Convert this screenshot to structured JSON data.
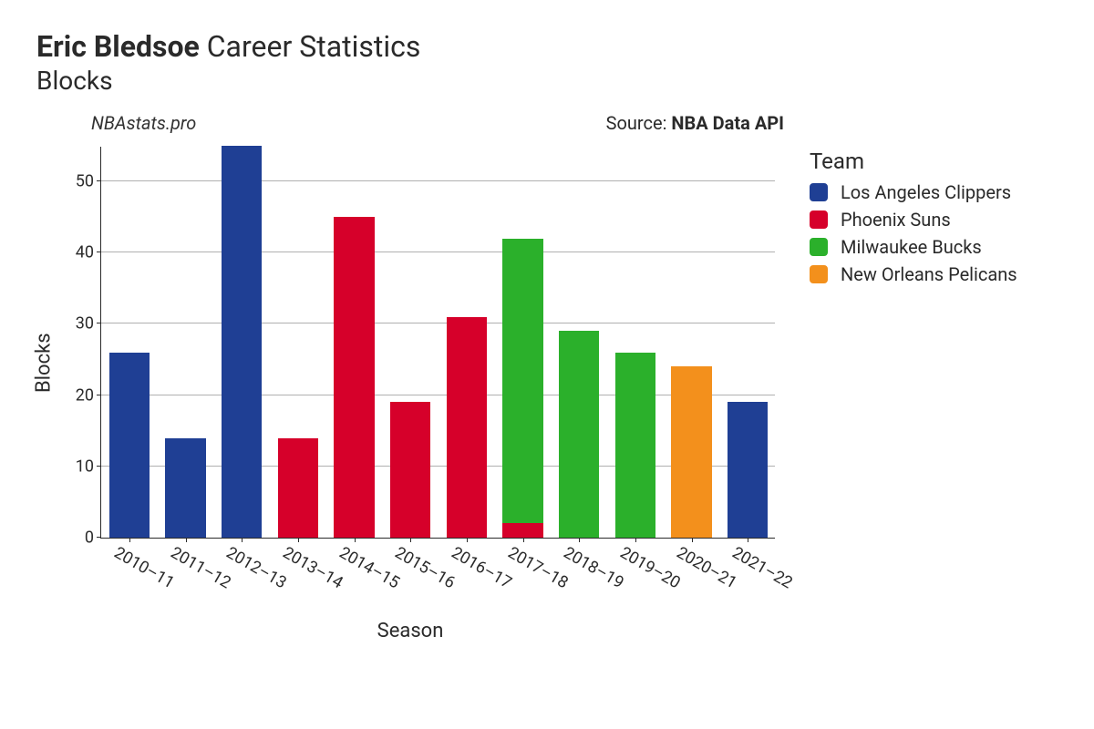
{
  "title": {
    "player_name": "Eric Bledsoe",
    "suffix": " Career Statistics",
    "subtitle": "Blocks"
  },
  "meta": {
    "watermark": "NBAstats.pro",
    "source_label": "Source: ",
    "source_name": "NBA Data API"
  },
  "chart": {
    "type": "bar",
    "xlabel": "Season",
    "ylabel": "Blocks",
    "ylim": [
      0,
      55
    ],
    "ytick_step": 10,
    "grid_color": "#b0b0b0",
    "background_color": "#ffffff",
    "bar_width": 0.72,
    "label_fontsize": 22,
    "tick_fontsize": 18,
    "seasons": [
      "2010–11",
      "2011–12",
      "2012–13",
      "2013–14",
      "2014–15",
      "2015–16",
      "2016–17",
      "2017–18",
      "2018–19",
      "2019–20",
      "2020–21",
      "2021–22"
    ],
    "segments": [
      [
        {
          "team": "Los Angeles Clippers",
          "value": 26
        }
      ],
      [
        {
          "team": "Los Angeles Clippers",
          "value": 14
        }
      ],
      [
        {
          "team": "Los Angeles Clippers",
          "value": 55
        }
      ],
      [
        {
          "team": "Phoenix Suns",
          "value": 14
        }
      ],
      [
        {
          "team": "Phoenix Suns",
          "value": 45
        }
      ],
      [
        {
          "team": "Phoenix Suns",
          "value": 19
        }
      ],
      [
        {
          "team": "Phoenix Suns",
          "value": 31
        }
      ],
      [
        {
          "team": "Phoenix Suns",
          "value": 2
        },
        {
          "team": "Milwaukee Bucks",
          "value": 40
        }
      ],
      [
        {
          "team": "Milwaukee Bucks",
          "value": 29
        }
      ],
      [
        {
          "team": "Milwaukee Bucks",
          "value": 26
        }
      ],
      [
        {
          "team": "New Orleans Pelicans",
          "value": 24
        }
      ],
      [
        {
          "team": "Los Angeles Clippers",
          "value": 19
        }
      ]
    ]
  },
  "legend": {
    "title": "Team",
    "teams": [
      {
        "name": "Los Angeles Clippers",
        "color": "#1f3f94"
      },
      {
        "name": "Phoenix Suns",
        "color": "#d6002a"
      },
      {
        "name": "Milwaukee Bucks",
        "color": "#2bb02b"
      },
      {
        "name": "New Orleans Pelicans",
        "color": "#f3901c"
      }
    ]
  }
}
